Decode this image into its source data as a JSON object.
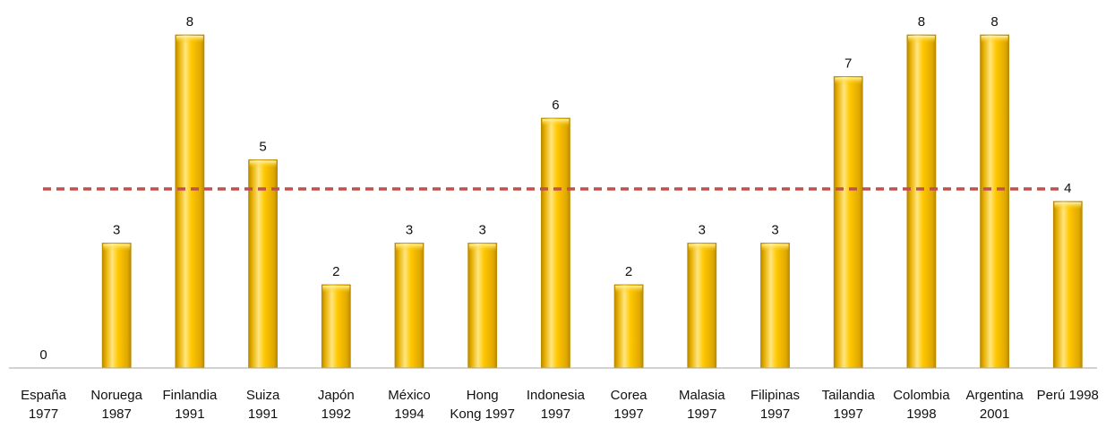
{
  "chart_data": {
    "type": "bar",
    "categories": [
      [
        "España",
        "1977"
      ],
      [
        "Noruega",
        "1987"
      ],
      [
        "Finlandia",
        "1991"
      ],
      [
        "Suiza",
        "1991"
      ],
      [
        "Japón",
        "1992"
      ],
      [
        "México",
        "1994"
      ],
      [
        "Hong",
        "Kong 1997"
      ],
      [
        "Indonesia",
        "1997"
      ],
      [
        "Corea",
        "1997"
      ],
      [
        "Malasia",
        "1997"
      ],
      [
        "Filipinas",
        "1997"
      ],
      [
        "Tailandia",
        "1997"
      ],
      [
        "Colombia",
        "1998"
      ],
      [
        "Argentina",
        "2001"
      ],
      [
        "Perú 1998"
      ]
    ],
    "values": [
      0,
      3,
      8,
      5,
      2,
      3,
      3,
      6,
      2,
      3,
      3,
      7,
      8,
      8,
      4
    ],
    "data_labels": [
      "0",
      "3",
      "8",
      "5",
      "2",
      "3",
      "3",
      "6",
      "2",
      "3",
      "3",
      "7",
      "8",
      "8",
      "4"
    ],
    "reference_line": 4.3,
    "ylim": [
      0,
      8
    ],
    "grid": false,
    "legend": "none",
    "colors": {
      "bar": "#FFC800",
      "bar_highlight": "#FFE680",
      "bar_shadow": "#B88A00",
      "reference_line": "#C0504D",
      "axis": "#A6A6A6"
    }
  }
}
